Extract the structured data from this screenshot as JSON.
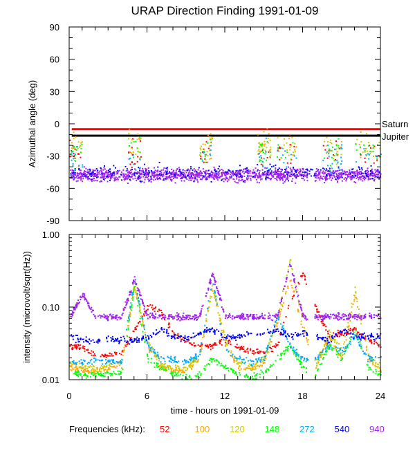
{
  "chart_data": [
    {
      "type": "scatter",
      "title": "URAP Direction Finding  1991-01-09",
      "ylabel": "Azimuthal angle (deg)",
      "xlabel": "time - hours on 1991-01-09",
      "xlim": [
        0,
        24
      ],
      "ylim": [
        -90,
        90
      ],
      "xticks": [
        "0",
        "6",
        "12",
        "18",
        "24"
      ],
      "yticks": [
        "90",
        "60",
        "30",
        "0",
        "-30",
        "-60",
        "-90"
      ],
      "reference_lines": [
        {
          "name": "Saturn",
          "value": -5,
          "color": "#ff0000"
        },
        {
          "name": "Jupiter",
          "value": -11,
          "color": "#000000"
        }
      ],
      "series_center_deg": {
        "940": -47,
        "540": -45,
        "272": -30,
        "148": -25,
        "120": -22,
        "100": -20,
        "52": -25
      },
      "grid": false
    },
    {
      "type": "scatter",
      "ylabel": "intensity (microvolt/sqrt(Hz))",
      "xlabel": "time - hours on 1991-01-09",
      "xlim": [
        0,
        24
      ],
      "ylim": [
        0.01,
        1.0
      ],
      "yscale": "log",
      "xticks": [
        "0",
        "6",
        "12",
        "18",
        "24"
      ],
      "yticks": [
        "1.00",
        "0.10",
        "0.01"
      ],
      "x": [
        0,
        1,
        2,
        3,
        4,
        5,
        6,
        7,
        8,
        9,
        10,
        11,
        12,
        13,
        14,
        15,
        16,
        17,
        18,
        19,
        20,
        21,
        22,
        23,
        24
      ],
      "series": [
        {
          "name": "52",
          "color": "#ff0000",
          "values": [
            0.03,
            0.028,
            0.022,
            0.022,
            0.024,
            0.05,
            0.1,
            0.09,
            0.045,
            0.035,
            0.03,
            0.03,
            0.035,
            0.028,
            0.025,
            0.025,
            0.03,
            0.12,
            0.3,
            0.1,
            0.04,
            0.045,
            0.05,
            0.035,
            0.03
          ]
        },
        {
          "name": "100",
          "color": "#ffa500",
          "values": [
            0.015,
            0.014,
            0.013,
            0.015,
            0.016,
            0.2,
            0.03,
            0.015,
            0.014,
            0.013,
            0.02,
            0.18,
            0.03,
            0.015,
            0.014,
            0.018,
            0.06,
            0.25,
            0.05,
            0.015,
            0.04,
            0.02,
            0.15,
            0.02,
            0.013
          ]
        },
        {
          "name": "120",
          "color": "#cccc00",
          "values": [
            0.017,
            0.016,
            0.014,
            0.016,
            0.018,
            0.22,
            0.035,
            0.017,
            0.015,
            0.014,
            0.022,
            0.2,
            0.035,
            0.017,
            0.015,
            0.02,
            0.07,
            0.45,
            0.06,
            0.017,
            0.045,
            0.025,
            0.18,
            0.022,
            0.015
          ]
        },
        {
          "name": "148",
          "color": "#00ff00",
          "values": [
            0.013,
            0.012,
            0.012,
            0.012,
            0.013,
            0.2,
            0.02,
            0.015,
            0.012,
            0.011,
            0.012,
            0.02,
            0.015,
            0.012,
            0.011,
            0.013,
            0.02,
            0.03,
            0.015,
            0.012,
            0.03,
            0.02,
            0.05,
            0.015,
            0.012
          ]
        },
        {
          "name": "272",
          "color": "#00aaff",
          "values": [
            0.018,
            0.018,
            0.019,
            0.018,
            0.018,
            0.25,
            0.03,
            0.02,
            0.019,
            0.018,
            0.022,
            0.25,
            0.025,
            0.02,
            0.018,
            0.02,
            0.08,
            0.03,
            0.02,
            0.02,
            0.03,
            0.025,
            0.04,
            0.02,
            0.02
          ]
        },
        {
          "name": "540",
          "color": "#0000ff",
          "values": [
            0.04,
            0.035,
            0.035,
            0.037,
            0.036,
            0.035,
            0.04,
            0.05,
            0.04,
            0.038,
            0.045,
            0.05,
            0.04,
            0.04,
            0.045,
            0.045,
            0.05,
            0.04,
            0.045,
            0.04,
            0.035,
            0.05,
            0.04,
            0.04,
            0.04
          ]
        },
        {
          "name": "940",
          "color": "#a020f0",
          "values": [
            0.075,
            0.15,
            0.075,
            0.075,
            0.075,
            0.25,
            0.075,
            0.075,
            0.075,
            0.075,
            0.075,
            0.3,
            0.075,
            0.075,
            0.075,
            0.075,
            0.075,
            0.4,
            0.075,
            0.075,
            0.075,
            0.075,
            0.075,
            0.075,
            0.075
          ]
        }
      ]
    }
  ],
  "legend": {
    "label": "Frequencies (kHz):",
    "items": [
      {
        "text": "52",
        "color": "#ff0000"
      },
      {
        "text": "100",
        "color": "#ffa500"
      },
      {
        "text": "120",
        "color": "#cccc00"
      },
      {
        "text": "148",
        "color": "#00ff00"
      },
      {
        "text": "272",
        "color": "#00aaff"
      },
      {
        "text": "540",
        "color": "#0000ff"
      },
      {
        "text": "940",
        "color": "#a020f0"
      }
    ]
  },
  "labels": {
    "saturn": "Saturn",
    "jupiter": "Jupiter"
  }
}
